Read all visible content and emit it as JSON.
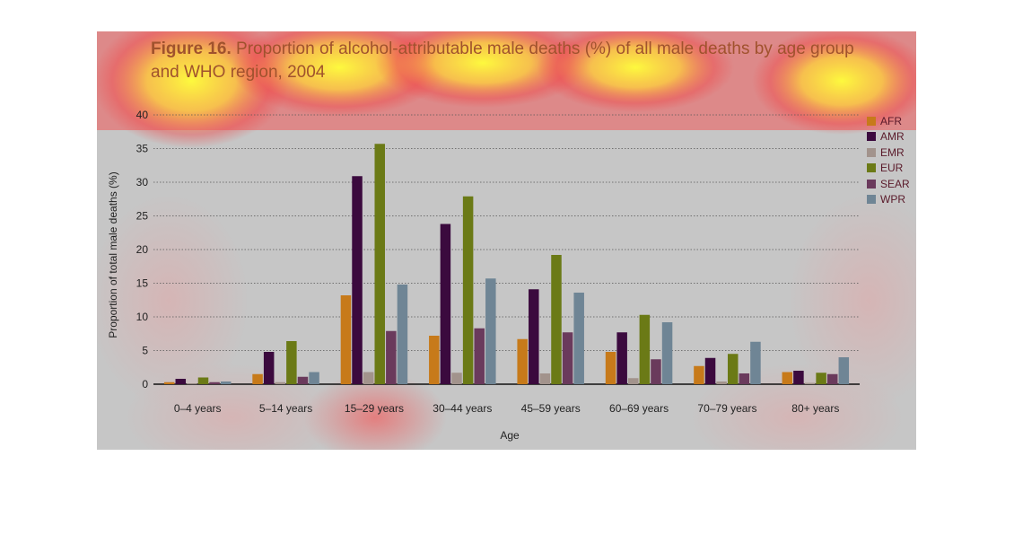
{
  "figure": {
    "label": "Figure 16.",
    "title": "Proportion of alcohol-attributable male deaths (%) of all male deaths by age group and WHO region, 2004"
  },
  "chart_data": {
    "type": "bar",
    "categories": [
      "0–4 years",
      "5–14 years",
      "15–29 years",
      "30–44 years",
      "45–59 years",
      "60–69 years",
      "70–79 years",
      "80+ years"
    ],
    "series": [
      {
        "name": "AFR",
        "color": "#c77a1a",
        "values": [
          0.3,
          1.5,
          13.2,
          7.2,
          6.7,
          4.8,
          2.7,
          1.8
        ]
      },
      {
        "name": "AMR",
        "color": "#3b0a3e",
        "values": [
          0.8,
          4.8,
          30.9,
          23.8,
          14.1,
          7.7,
          3.9,
          2.0
        ]
      },
      {
        "name": "EMR",
        "color": "#a2938c",
        "values": [
          0.1,
          0.3,
          1.8,
          1.7,
          1.6,
          0.9,
          0.4,
          0.2
        ]
      },
      {
        "name": "EUR",
        "color": "#6b7a16",
        "values": [
          1.0,
          6.4,
          35.7,
          27.9,
          19.2,
          10.3,
          4.5,
          1.7
        ]
      },
      {
        "name": "SEAR",
        "color": "#6a3a5c",
        "values": [
          0.3,
          1.1,
          7.9,
          8.3,
          7.7,
          3.7,
          1.6,
          1.5
        ]
      },
      {
        "name": "WPR",
        "color": "#6f8595",
        "values": [
          0.4,
          1.8,
          14.8,
          15.7,
          13.6,
          9.2,
          6.3,
          4.0
        ]
      }
    ],
    "xlabel": "Age",
    "ylabel": "Proportion of total male deaths (%)",
    "yticks": [
      0,
      5,
      10,
      15,
      20,
      25,
      30,
      35,
      40
    ],
    "ylim": [
      0,
      40
    ],
    "grid": true,
    "legend_position": "top-right"
  }
}
